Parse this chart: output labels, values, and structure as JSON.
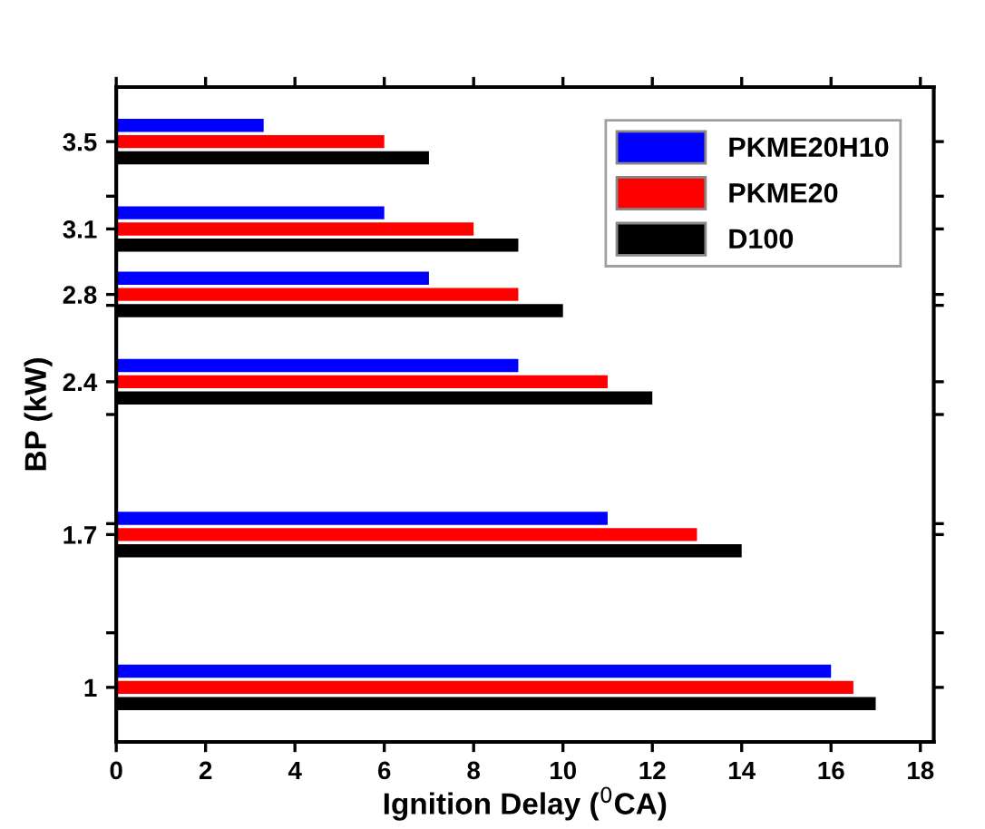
{
  "chart_data": {
    "type": "bar",
    "orientation": "horizontal",
    "xlabel": "Ignition Delay ($^{0}$CA)",
    "ylabel": "BP (kW)",
    "x": [
      1,
      1.7,
      2.4,
      2.8,
      3.1,
      3.5
    ],
    "series": [
      {
        "name": "PKME20H10",
        "color": "#0000ff",
        "values": [
          16,
          11,
          9,
          7,
          6,
          3.3
        ]
      },
      {
        "name": "PKME20",
        "color": "#ff0000",
        "values": [
          16.5,
          13,
          11,
          9,
          8,
          6
        ]
      },
      {
        "name": "D100",
        "color": "#000000",
        "values": [
          17,
          14,
          12,
          10,
          9,
          7
        ]
      }
    ],
    "xlim": [
      0,
      18.3
    ],
    "xticks": [
      0,
      2,
      4,
      6,
      8,
      10,
      12,
      14,
      16,
      18
    ],
    "ylim": [
      0.75,
      3.75
    ],
    "yticks": [
      {
        "value": 1,
        "label": "1"
      },
      {
        "value": 1.25,
        "label": null
      },
      {
        "value": 1.7,
        "label": "1.7"
      },
      {
        "value": 1.75,
        "label": null
      },
      {
        "value": 2.25,
        "label": null
      },
      {
        "value": 2.4,
        "label": "2.4"
      },
      {
        "value": 2.75,
        "label": null
      },
      {
        "value": 2.8,
        "label": "2.8"
      },
      {
        "value": 3.1,
        "label": "3.1"
      },
      {
        "value": 3.25,
        "label": null
      },
      {
        "value": 3.5,
        "label": "3.5"
      }
    ],
    "legend": "top right"
  }
}
